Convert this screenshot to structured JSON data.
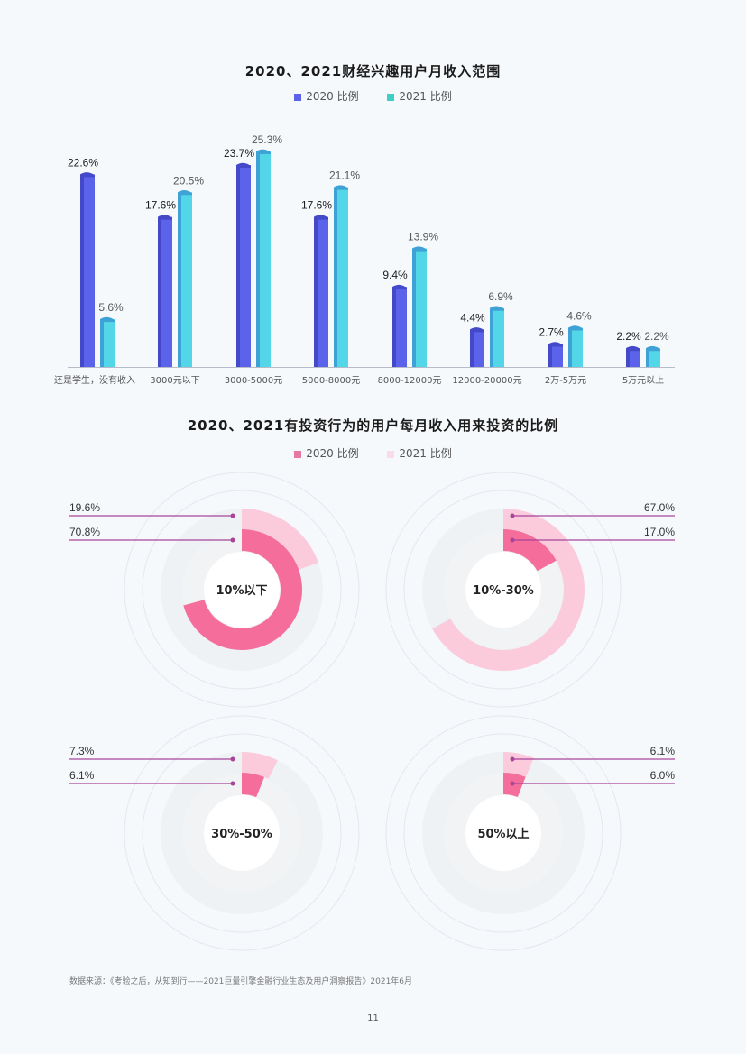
{
  "chart_data": [
    {
      "type": "bar",
      "title": "2020、2021财经兴趣用户月收入范围",
      "legend": [
        "2020 比例",
        "2021 比例"
      ],
      "categories": [
        "还是学生，没有收入",
        "3000元以下",
        "3000-5000元",
        "5000-8000元",
        "8000-12000元",
        "12000-20000元",
        "2万-5万元",
        "5万元以上"
      ],
      "series": [
        {
          "name": "2020 比例",
          "color": "#5b63e8",
          "values": [
            22.6,
            17.6,
            23.7,
            17.6,
            9.4,
            4.4,
            2.7,
            2.2
          ]
        },
        {
          "name": "2021 比例",
          "color": "#4fd3e6",
          "values": [
            5.6,
            20.5,
            25.3,
            21.1,
            13.9,
            6.9,
            4.6,
            2.2
          ]
        }
      ],
      "labels_2020": [
        "22.6%",
        "17.6%",
        "23.7%",
        "17.6%",
        "9.4%",
        "4.4%",
        "2.7%",
        "2.2%"
      ],
      "labels_2021": [
        "5.6%",
        "20.5%",
        "25.3%",
        "21.1%",
        "13.9%",
        "6.9%",
        "4.6%",
        "2.2%"
      ],
      "xlabel": "",
      "ylabel": "",
      "grid": false,
      "legend_position": "top"
    },
    {
      "type": "pie",
      "subtype": "radial-donut",
      "title": "2020、2021有投资行为的用户每月收入用来投资的比例",
      "legend": [
        "2020 比例",
        "2021 比例"
      ],
      "series_colors": {
        "2020 比例": "#f36f9c",
        "2021 比例": "#fbcbdc"
      },
      "categories": [
        "10%以下",
        "10%-30%",
        "30%-50%",
        "50%以上"
      ],
      "series": [
        {
          "name": "2020 比例",
          "values": [
            70.8,
            17.0,
            6.1,
            6.0
          ]
        },
        {
          "name": "2021 比例",
          "values": [
            19.6,
            67.0,
            7.3,
            6.1
          ]
        }
      ]
    }
  ],
  "bar_chart": {
    "title": "2020、2021财经兴趣用户月收入范围",
    "legend": [
      {
        "label": "2020 比例",
        "color": "#5b63e8"
      },
      {
        "label": "2021 比例",
        "color": "#3fcfc6"
      }
    ]
  },
  "donut_chart": {
    "title": "2020、2021有投资行为的用户每月收入用来投资的比例",
    "legend": [
      {
        "label": "2020 比例",
        "color": "#e8799e"
      },
      {
        "label": "2021 比例",
        "color": "#fbdbe6"
      }
    ],
    "donuts": [
      {
        "center": "10%以下",
        "outer_label": "19.6%",
        "inner_label": "70.8%",
        "outer": 19.6,
        "inner": 70.8,
        "side": "left"
      },
      {
        "center": "10%-30%",
        "outer_label": "67.0%",
        "inner_label": "17.0%",
        "outer": 67.0,
        "inner": 17.0,
        "side": "right"
      },
      {
        "center": "30%-50%",
        "outer_label": "7.3%",
        "inner_label": "6.1%",
        "outer": 7.3,
        "inner": 6.1,
        "side": "left"
      },
      {
        "center": "50%以上",
        "outer_label": "6.1%",
        "inner_label": "6.0%",
        "outer": 6.1,
        "inner": 6.0,
        "side": "right"
      }
    ]
  },
  "footer": {
    "source": "数据来源：《考验之后，从知到行——2021巨量引擎金融行业生态及用户洞察报告》2021年6月",
    "page_number": "11"
  }
}
